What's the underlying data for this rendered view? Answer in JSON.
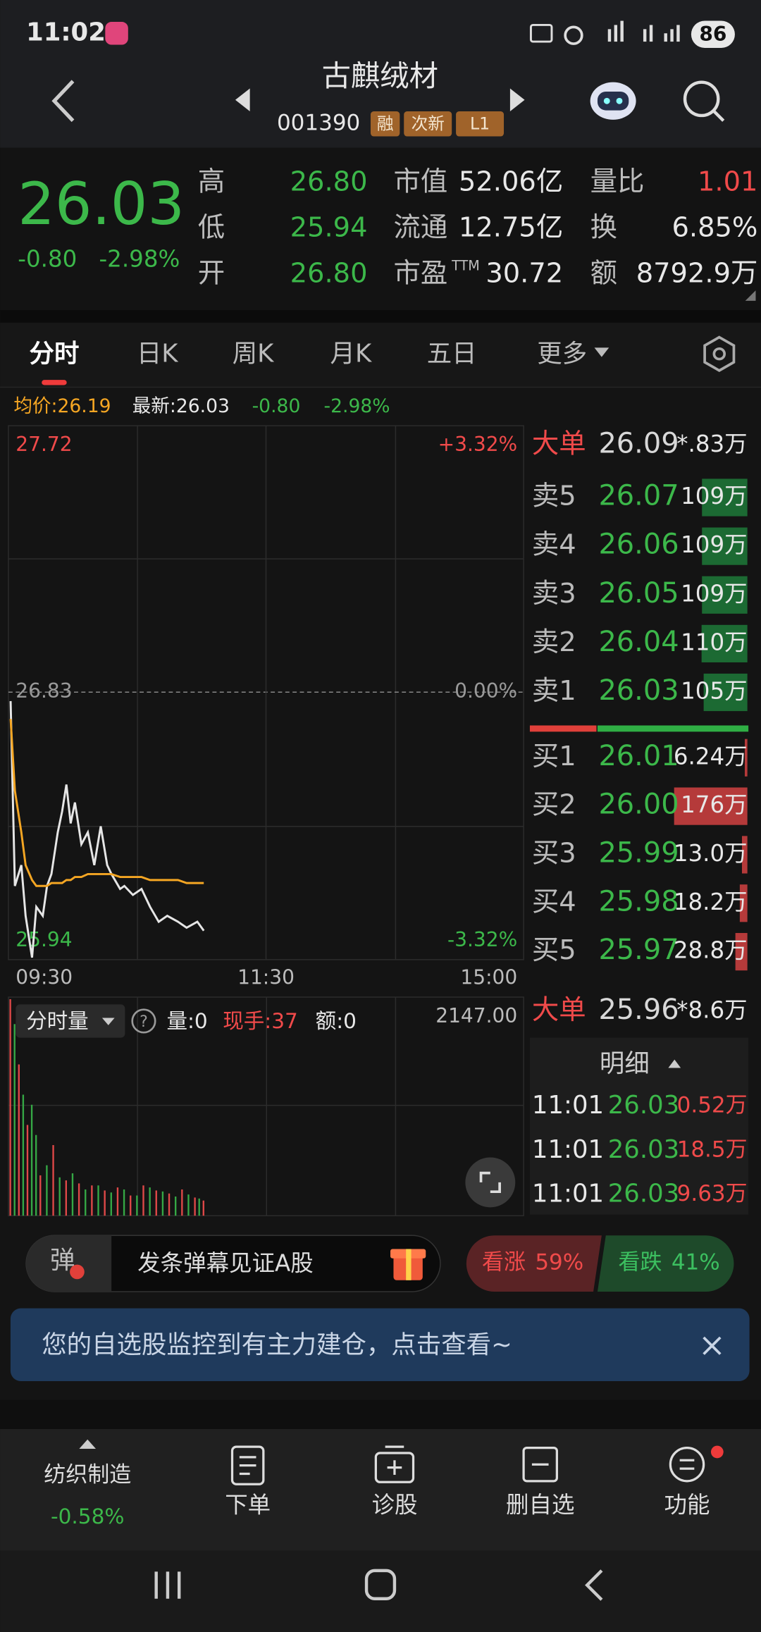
{
  "status_bar": {
    "time": "11:02",
    "battery": "86"
  },
  "header": {
    "title": "古麒绒材",
    "code": "001390",
    "tags": [
      "融",
      "次新",
      "L1"
    ]
  },
  "quote": {
    "price": "26.03",
    "change": "-0.80",
    "change_pct": "-2.98%",
    "columns": [
      [
        {
          "label": "高",
          "value": "26.80"
        },
        {
          "label": "低",
          "value": "25.94"
        },
        {
          "label": "开",
          "value": "26.80"
        }
      ],
      [
        {
          "label": "市值",
          "value": "52.06亿"
        },
        {
          "label": "流通",
          "value": "12.75亿"
        },
        {
          "label": "市盈",
          "label_sup": "TTM",
          "value": "30.72"
        }
      ],
      [
        {
          "label": "量比",
          "value": "1.01"
        },
        {
          "label": "换",
          "value": "6.85%"
        },
        {
          "label": "额",
          "value": "8792.9万"
        }
      ]
    ]
  },
  "tabs": [
    "分时",
    "日K",
    "周K",
    "月K",
    "五日",
    "更多"
  ],
  "selected_tab": 0,
  "info_line": {
    "avg": "均价:26.19",
    "latest": "最新:26.03",
    "change": "-0.80",
    "change_pct": "-2.98%"
  },
  "chart_data": [
    {
      "type": "line",
      "x": [
        1,
        3,
        6,
        8,
        11,
        13,
        16,
        18,
        20,
        23,
        25,
        27,
        29,
        31,
        34,
        37,
        40,
        43,
        46,
        48,
        52,
        54,
        58,
        62,
        66,
        70,
        74,
        79,
        83,
        88,
        91
      ],
      "series": [
        {
          "color": "#e6e6e6",
          "values": [
            26.8,
            26.18,
            26.25,
            26.08,
            25.94,
            26.11,
            26.08,
            26.18,
            26.22,
            26.36,
            26.43,
            26.52,
            26.39,
            26.46,
            26.32,
            26.36,
            26.25,
            26.38,
            26.25,
            26.22,
            26.17,
            26.18,
            26.15,
            26.17,
            26.11,
            26.06,
            26.08,
            26.06,
            26.04,
            26.06,
            26.03
          ]
        },
        {
          "color": "#f5a623",
          "values": [
            26.74,
            26.5,
            26.36,
            26.25,
            26.2,
            26.18,
            26.18,
            26.18,
            26.19,
            26.19,
            26.19,
            26.2,
            26.2,
            26.21,
            26.21,
            26.22,
            26.22,
            26.22,
            26.22,
            26.22,
            26.21,
            26.21,
            26.21,
            26.21,
            26.2,
            26.2,
            26.2,
            26.2,
            26.19,
            26.19,
            26.19
          ]
        }
      ],
      "xlim": [
        0,
        240
      ],
      "xticks": [
        {
          "value": 0,
          "label": "09:30"
        },
        {
          "value": 120,
          "label": "11:30"
        },
        {
          "value": 240,
          "label": "15:00"
        }
      ],
      "ylim": [
        25.94,
        27.72
      ],
      "yticks": [
        27.72,
        26.83,
        25.94
      ],
      "y2lim": [
        -3.32,
        3.32
      ],
      "y2ticks": [
        {
          "value": 3.32,
          "label": "+3.32%"
        },
        {
          "value": 0,
          "label": "0.00%"
        },
        {
          "value": -3.32,
          "label": "-3.32%"
        }
      ]
    },
    {
      "type": "bar",
      "series": [
        {
          "color": "#e04848",
          "x": [
            0,
            4,
            8,
            14,
            20,
            26,
            32,
            38,
            44,
            50,
            56,
            62,
            68,
            74,
            80,
            86,
            90
          ],
          "values": [
            2147,
            1500,
            900,
            400,
            700,
            350,
            320,
            300,
            250,
            280,
            200,
            300,
            250,
            220,
            260,
            180,
            150
          ]
        },
        {
          "color": "#35a845",
          "x": [
            2,
            6,
            10,
            12,
            17,
            23,
            29,
            35,
            41,
            47,
            53,
            59,
            65,
            71,
            77,
            83,
            88
          ],
          "values": [
            1900,
            1200,
            1100,
            800,
            500,
            380,
            420,
            260,
            300,
            230,
            260,
            200,
            280,
            240,
            190,
            210,
            170
          ]
        }
      ],
      "xlim": [
        0,
        240
      ],
      "ylim": [
        0,
        2147
      ],
      "yticks": [
        {
          "value": 2147,
          "label": "2147.00"
        }
      ]
    }
  ],
  "volume_header": {
    "selector": "分时量",
    "qty": "量:0",
    "hand": "现手:37",
    "amount": "额:0"
  },
  "order_book": {
    "big_top": {
      "label": "大单",
      "price": "26.09",
      "volume": "*.83万"
    },
    "asks": [
      {
        "label": "卖5",
        "price": "26.07",
        "volume": "109万"
      },
      {
        "label": "卖4",
        "price": "26.06",
        "volume": "109万"
      },
      {
        "label": "卖3",
        "price": "26.05",
        "volume": "109万"
      },
      {
        "label": "卖2",
        "price": "26.04",
        "volume": "110万"
      },
      {
        "label": "卖1",
        "price": "26.03",
        "volume": "105万"
      }
    ],
    "bids": [
      {
        "label": "买1",
        "price": "26.01",
        "volume": "6.24万"
      },
      {
        "label": "买2",
        "price": "26.00",
        "volume": "176万"
      },
      {
        "label": "买3",
        "price": "25.99",
        "volume": "13.0万"
      },
      {
        "label": "买4",
        "price": "25.98",
        "volume": "18.2万"
      },
      {
        "label": "买5",
        "price": "25.97",
        "volume": "28.8万"
      }
    ],
    "big_bottom": {
      "label": "大单",
      "price": "25.96",
      "volume": "*8.6万"
    }
  },
  "details": {
    "title": "明细",
    "rows": [
      [
        "11:01",
        "26.03",
        "0.52万"
      ],
      [
        "11:01",
        "26.03",
        "18.5万"
      ],
      [
        "11:01",
        "26.03",
        "9.63万"
      ]
    ]
  },
  "danmaku": {
    "icon": "弹",
    "placeholder": "发条弹幕见证A股"
  },
  "vote": {
    "up_label": "看涨",
    "up_value": "59%",
    "down_label": "看跌",
    "down_value": "41%"
  },
  "banner": {
    "text": "您的自选股监控到有主力建仓，点击查看~"
  },
  "bottom_nav": {
    "sector": "纺织制造",
    "sector_change": "-0.58%",
    "items": [
      "下单",
      "诊股",
      "删自选",
      "功能"
    ]
  }
}
